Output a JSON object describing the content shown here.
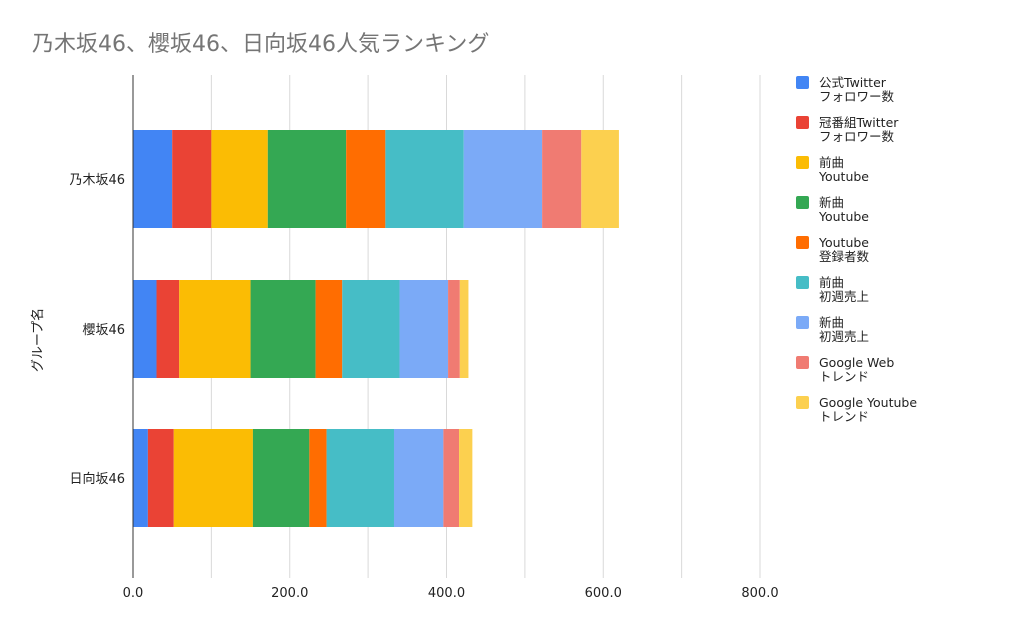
{
  "chart_data": {
    "type": "bar",
    "orientation": "horizontal",
    "stacked": true,
    "title": "乃木坂46、櫻坂46、日向坂46人気ランキング",
    "xlabel": "",
    "ylabel": "グループ名",
    "xlim": [
      0,
      800
    ],
    "x_ticks": [
      "0.0",
      "200.0",
      "400.0",
      "600.0",
      "800.0"
    ],
    "grid": true,
    "legend_position": "right",
    "categories": [
      "乃木坂46",
      "櫻坂46",
      "日向坂46"
    ],
    "series": [
      {
        "name": "公式Twitter\nフォロワー数",
        "color": "#4285F4",
        "values": [
          50,
          30,
          19
        ]
      },
      {
        "name": "冠番組Twitter\nフォロワー数",
        "color": "#EA4335",
        "values": [
          50,
          29,
          33
        ]
      },
      {
        "name": "前曲\nYoutube",
        "color": "#FBBC04",
        "values": [
          72,
          91,
          101
        ]
      },
      {
        "name": "新曲\nYoutube",
        "color": "#34A853",
        "values": [
          100,
          83,
          72
        ]
      },
      {
        "name": "Youtube\n登録者数",
        "color": "#FF6D01",
        "values": [
          50,
          34,
          22
        ]
      },
      {
        "name": "前曲\n初週売上",
        "color": "#46BDC6",
        "values": [
          100,
          73,
          86
        ]
      },
      {
        "name": "新曲\n初週売上",
        "color": "#7BAAF7",
        "values": [
          100,
          62,
          63
        ]
      },
      {
        "name": "Google Web\nトレンド",
        "color": "#F07B72",
        "values": [
          50,
          15,
          20
        ]
      },
      {
        "name": "Google Youtube\nトレンド",
        "color": "#FCD04F",
        "values": [
          48,
          11,
          17
        ]
      }
    ]
  }
}
